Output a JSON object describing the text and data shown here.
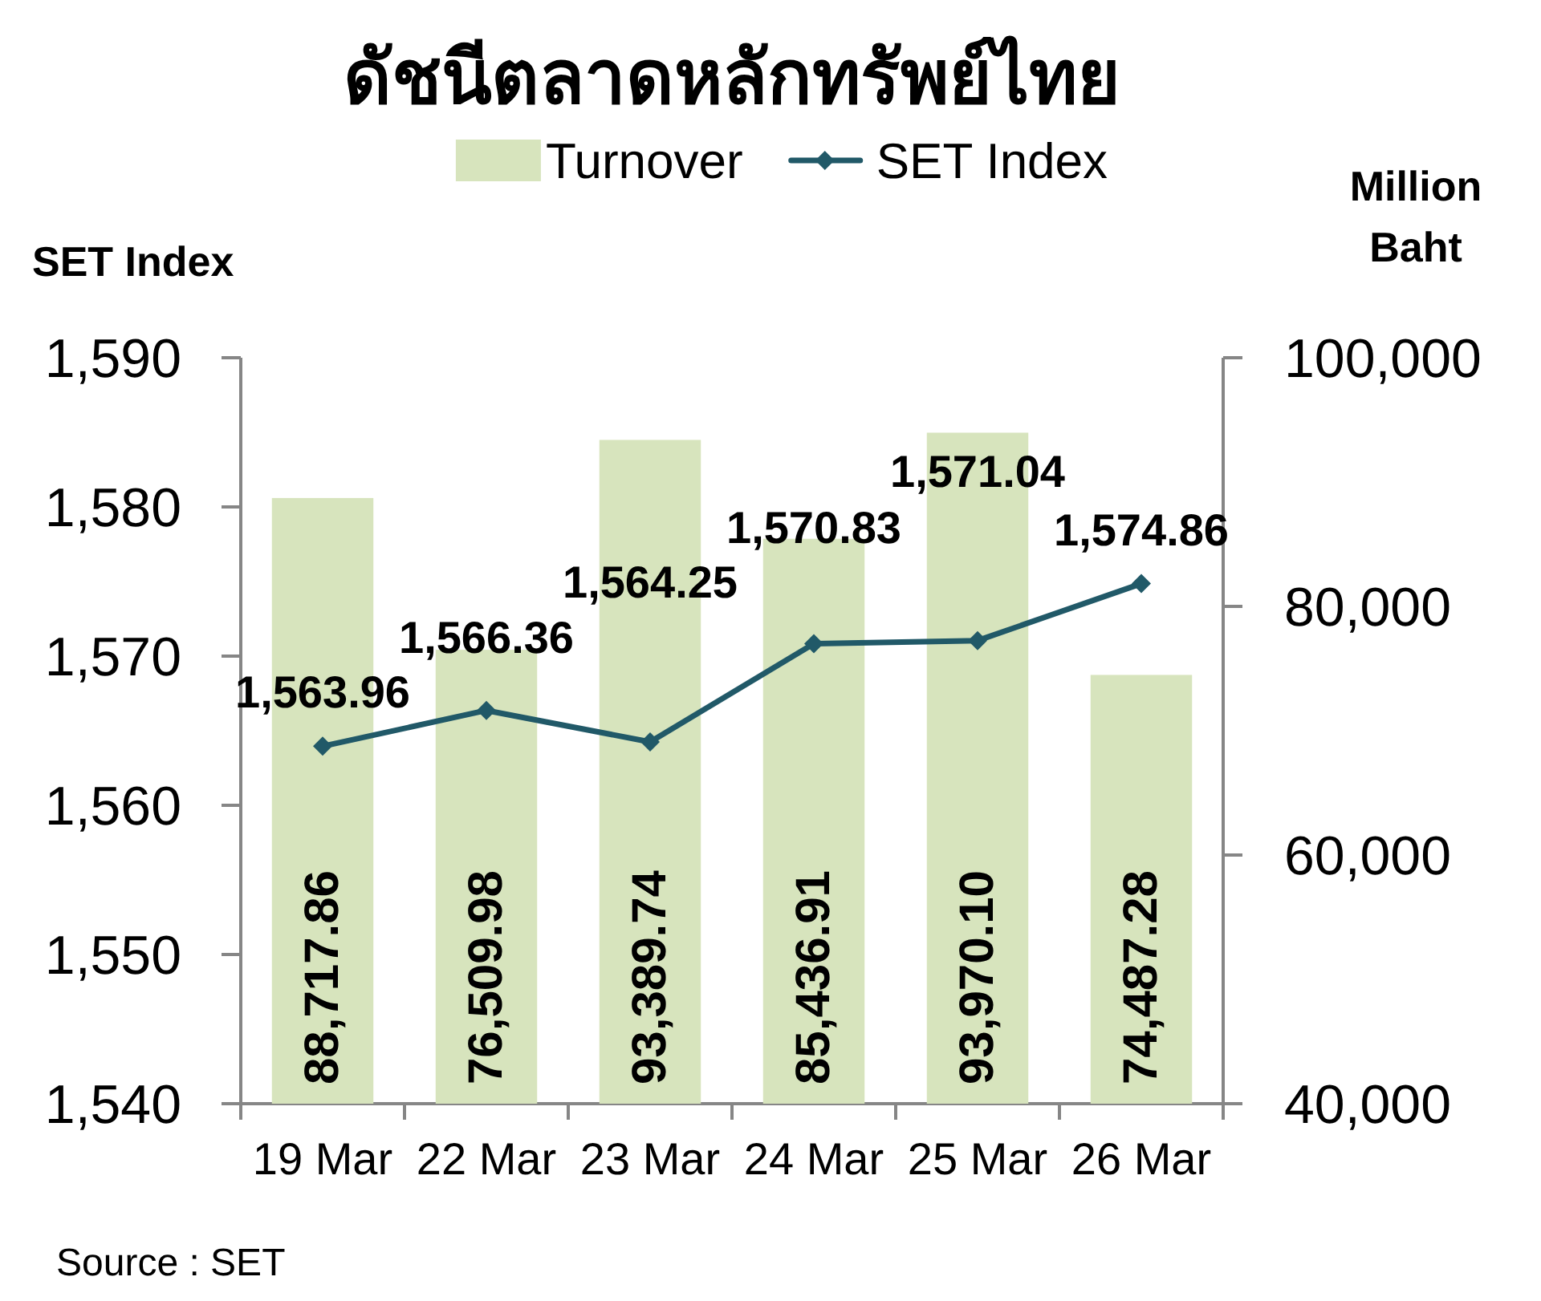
{
  "chart_data": {
    "type": "bar",
    "title": "ดัชนีตลาดหลักทรัพย์ไทย",
    "categories": [
      "19 Mar",
      "22 Mar",
      "23 Mar",
      "24 Mar",
      "25 Mar",
      "26 Mar"
    ],
    "series": [
      {
        "name": "Turnover",
        "axis": "y2",
        "color": "#d7e4bd",
        "values": [
          88717.86,
          76509.98,
          93389.74,
          85436.91,
          93970.1,
          74487.28
        ],
        "value_labels": [
          "88,717.86",
          "76,509.98",
          "93,389.74",
          "85,436.91",
          "93,970.10",
          "74,487.28"
        ]
      },
      {
        "name": "SET Index",
        "type": "line",
        "color": "#215968",
        "values": [
          1563.96,
          1566.36,
          1564.25,
          1570.83,
          1571.04,
          1574.86
        ],
        "value_labels": [
          "1,563.96",
          "1,566.36",
          "1,564.25",
          "1,570.83",
          "1,571.04",
          "1,574.86"
        ]
      }
    ],
    "ylabel": "SET Index",
    "y2label": "Million Baht",
    "ylim": [
      1540,
      1590
    ],
    "yticks": [
      {
        "value": 1540,
        "label": "1,540"
      },
      {
        "value": 1550,
        "label": "1,550"
      },
      {
        "value": 1560,
        "label": "1,560"
      },
      {
        "value": 1570,
        "label": "1,570"
      },
      {
        "value": 1580,
        "label": "1,580"
      },
      {
        "value": 1590,
        "label": "1,590"
      }
    ],
    "y2lim": [
      40000,
      100000
    ],
    "y2ticks": [
      {
        "value": 40000,
        "label": "40,000"
      },
      {
        "value": 60000,
        "label": "60,000"
      },
      {
        "value": 80000,
        "label": "80,000"
      },
      {
        "value": 100000,
        "label": "100,000"
      }
    ],
    "legend": "top",
    "marker": "diamond",
    "line_style": "solid",
    "annotations": [
      "Source : SET"
    ]
  }
}
